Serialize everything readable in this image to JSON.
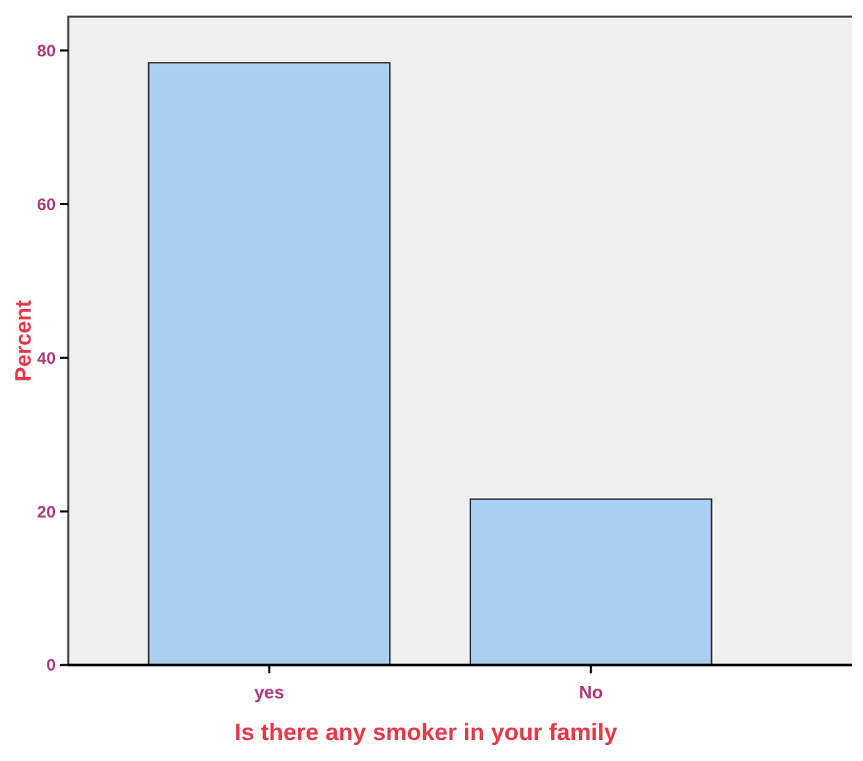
{
  "chart_data": {
    "type": "bar",
    "xlabel": "Is there any smoker in your family",
    "ylabel": "Percent",
    "categories": [
      "yes",
      "No"
    ],
    "values": [
      78.4,
      21.6
    ],
    "color": "#abcfee",
    "ylim": [
      0,
      84.4
    ],
    "yticks": [
      0,
      20,
      40,
      60,
      80
    ],
    "grid": false
  }
}
